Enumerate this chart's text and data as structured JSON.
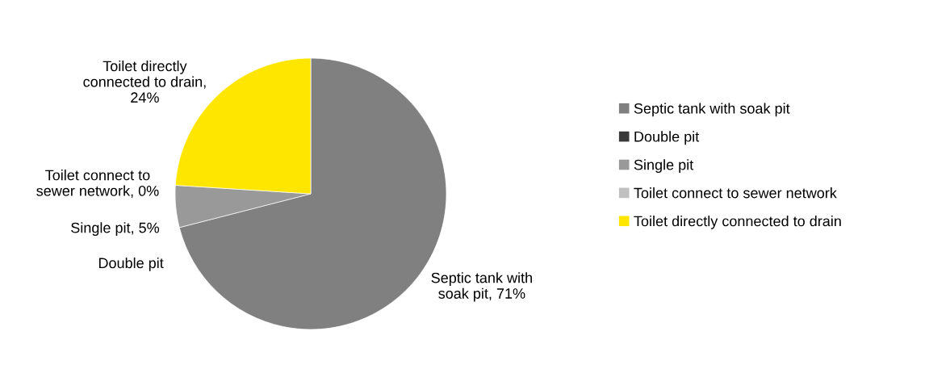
{
  "chart_data": {
    "type": "pie",
    "categories": [
      "Septic tank with soak pit",
      "Double pit",
      "Single pit",
      "Toilet connect to sewer network",
      "Toilet directly connected to drain"
    ],
    "values": [
      71,
      0,
      5,
      0,
      24
    ],
    "colors": [
      "#808080",
      "#3a3a3a",
      "#999999",
      "#c0c0c0",
      "#ffe600"
    ],
    "value_labels": [
      "Septic tank with\nsoak pit, 71%",
      "Double pit",
      "Single pit, 5%",
      "Toilet connect to\nsewer network, 0%",
      "Toilet directly\nconnected to drain,\n24%"
    ],
    "legend": "right"
  }
}
